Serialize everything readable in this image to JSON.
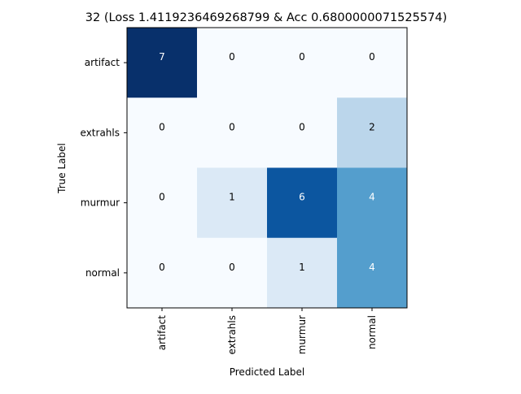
{
  "chart_data": {
    "type": "heatmap",
    "title": "32 (Loss 1.4119236469268799 & Acc 0.6800000071525574)",
    "xlabel": "Predicted Label",
    "ylabel": "True Label",
    "x_categories": [
      "artifact",
      "extrahls",
      "murmur",
      "normal"
    ],
    "y_categories": [
      "artifact",
      "extrahls",
      "murmur",
      "normal"
    ],
    "values": [
      [
        7,
        0,
        0,
        0
      ],
      [
        0,
        0,
        0,
        2
      ],
      [
        0,
        1,
        6,
        4
      ],
      [
        0,
        0,
        1,
        4
      ]
    ],
    "vmin": 0,
    "vmax": 7,
    "colormap": "Blues",
    "grid": false
  }
}
